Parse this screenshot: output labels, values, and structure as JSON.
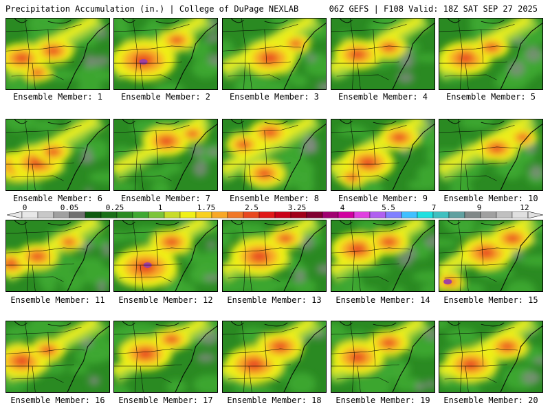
{
  "header": {
    "left": "Precipitation Accumulation (in.) | College of DuPage NEXLAB",
    "right": "06Z GEFS | F108 Valid: 18Z SAT SEP 27 2025"
  },
  "members": [
    {
      "label": "Ensemble Member: 1",
      "hotspots": [
        [
          0.15,
          0.55,
          0.16
        ],
        [
          0.45,
          0.45,
          0.14
        ],
        [
          0.3,
          0.75,
          0.1
        ]
      ]
    },
    {
      "label": "Ensemble Member: 2",
      "hotspots": [
        [
          0.28,
          0.58,
          0.22
        ],
        [
          0.6,
          0.3,
          0.12
        ]
      ],
      "peak": [
        0.28,
        0.6
      ]
    },
    {
      "label": "Ensemble Member: 3",
      "hotspots": [
        [
          0.45,
          0.55,
          0.18
        ],
        [
          0.7,
          0.35,
          0.1
        ]
      ]
    },
    {
      "label": "Ensemble Member: 4",
      "hotspots": [
        [
          0.25,
          0.5,
          0.16
        ],
        [
          0.55,
          0.4,
          0.12
        ]
      ]
    },
    {
      "label": "Ensemble Member: 5",
      "hotspots": [
        [
          0.25,
          0.55,
          0.18
        ],
        [
          0.5,
          0.4,
          0.12
        ]
      ]
    },
    {
      "label": "Ensemble Member: 6",
      "hotspots": [
        [
          0.1,
          0.65,
          0.16
        ],
        [
          0.3,
          0.6,
          0.18
        ],
        [
          0.45,
          0.45,
          0.12
        ]
      ]
    },
    {
      "label": "Ensemble Member: 7",
      "hotspots": [
        [
          0.5,
          0.3,
          0.16
        ],
        [
          0.75,
          0.2,
          0.1
        ]
      ]
    },
    {
      "label": "Ensemble Member: 8",
      "hotspots": [
        [
          0.45,
          0.18,
          0.14
        ],
        [
          0.4,
          0.75,
          0.14
        ],
        [
          0.2,
          0.35,
          0.12
        ]
      ]
    },
    {
      "label": "Ensemble Member: 9",
      "hotspots": [
        [
          0.35,
          0.6,
          0.18
        ],
        [
          0.65,
          0.25,
          0.14
        ],
        [
          0.2,
          0.8,
          0.1
        ]
      ]
    },
    {
      "label": "Ensemble Member: 10",
      "hotspots": [
        [
          0.55,
          0.4,
          0.14
        ],
        [
          0.8,
          0.25,
          0.1
        ]
      ]
    },
    {
      "label": "Ensemble Member: 11",
      "hotspots": [
        [
          0.05,
          0.6,
          0.14
        ],
        [
          0.3,
          0.5,
          0.14
        ],
        [
          0.6,
          0.3,
          0.1
        ]
      ]
    },
    {
      "label": "Ensemble Member: 12",
      "hotspots": [
        [
          0.3,
          0.65,
          0.22
        ],
        [
          0.55,
          0.3,
          0.14
        ]
      ],
      "peak": [
        0.32,
        0.62
      ]
    },
    {
      "label": "Ensemble Member: 13",
      "hotspots": [
        [
          0.35,
          0.5,
          0.2
        ],
        [
          0.6,
          0.25,
          0.12
        ]
      ]
    },
    {
      "label": "Ensemble Member: 14",
      "hotspots": [
        [
          0.25,
          0.4,
          0.18
        ],
        [
          0.55,
          0.3,
          0.14
        ]
      ]
    },
    {
      "label": "Ensemble Member: 15",
      "hotspots": [
        [
          0.45,
          0.45,
          0.18
        ],
        [
          0.7,
          0.25,
          0.14
        ],
        [
          0.1,
          0.85,
          0.1
        ]
      ],
      "peak": [
        0.08,
        0.85
      ]
    },
    {
      "label": "Ensemble Member: 16",
      "hotspots": [
        [
          0.15,
          0.55,
          0.18
        ],
        [
          0.4,
          0.4,
          0.12
        ]
      ]
    },
    {
      "label": "Ensemble Member: 17",
      "hotspots": [
        [
          0.3,
          0.45,
          0.18
        ],
        [
          0.55,
          0.25,
          0.12
        ]
      ]
    },
    {
      "label": "Ensemble Member: 18",
      "hotspots": [
        [
          0.3,
          0.6,
          0.2
        ],
        [
          0.55,
          0.35,
          0.16
        ]
      ]
    },
    {
      "label": "Ensemble Member: 19",
      "hotspots": [
        [
          0.25,
          0.5,
          0.18
        ],
        [
          0.55,
          0.3,
          0.14
        ]
      ]
    },
    {
      "label": "Ensemble Member: 20",
      "hotspots": [
        [
          0.3,
          0.6,
          0.18
        ],
        [
          0.65,
          0.35,
          0.14
        ]
      ]
    }
  ],
  "colorbar": {
    "tick_labels": [
      "0",
      "0.05",
      "0.25",
      "1",
      "1.75",
      "2.5",
      "3.25",
      "4",
      "5.5",
      "7",
      "9",
      "12"
    ],
    "colors": [
      "#e8e8e8",
      "#c8c8c8",
      "#a0a0a0",
      "#707070",
      "#0e5a10",
      "#1a7018",
      "#2a8a22",
      "#3fa832",
      "#7cc43a",
      "#c8dc2a",
      "#f0f018",
      "#f8d020",
      "#f8a828",
      "#f07828",
      "#e84820",
      "#e01818",
      "#c80018",
      "#a00018",
      "#800030",
      "#a00070",
      "#d000a0",
      "#e040e0",
      "#b060f0",
      "#8080ff",
      "#40c0ff",
      "#20e0e0",
      "#40c0c0",
      "#60a0a0",
      "#808888",
      "#a0a0a0",
      "#c0c0c0",
      "#e0e0e0"
    ],
    "field_colors": {
      "base": "#2a8a22",
      "light": "#3fa832",
      "yellowgreen": "#9ed03a",
      "yellow": "#f0f018",
      "orange": "#f8a828",
      "red": "#e84820",
      "magenta": "#a040a0",
      "gray": "#8a8a8a"
    }
  }
}
